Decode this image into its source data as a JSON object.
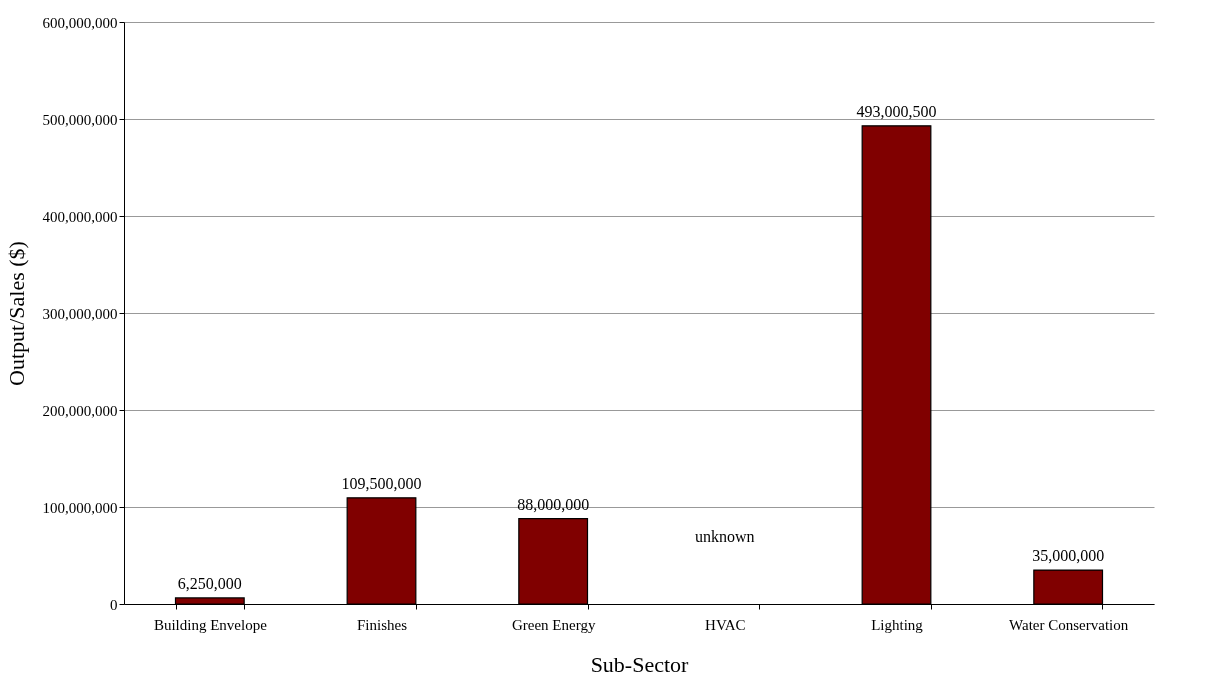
{
  "chart_data": {
    "type": "bar",
    "xlabel": "Sub-Sector",
    "ylabel": "Output/Sales ($)",
    "categories": [
      "Building Envelope",
      "Finishes",
      "Green Energy",
      "HVAC",
      "Lighting",
      "Water Conservation"
    ],
    "series": [
      {
        "color": "#800000",
        "values": [
          6250000,
          109500000,
          88000000,
          null,
          493000500,
          35000000
        ],
        "value_labels": [
          "6,250,000",
          "109,500,000",
          "88,000,000",
          null,
          "493,000,500",
          "35,000,000"
        ]
      }
    ],
    "ylim": [
      0,
      600000000
    ],
    "yticks": [
      0,
      {
        "value": 100000000,
        "label": "100,000,000"
      },
      {
        "value": 200000000,
        "label": "200,000,000"
      },
      {
        "value": 300000000,
        "label": "300,000,000"
      },
      {
        "value": 400000000,
        "label": "400,000,000"
      },
      {
        "value": 500000000,
        "label": "500,000,000"
      },
      {
        "value": 600000000,
        "label": "600,000,000"
      }
    ],
    "grid": "y",
    "annotations": [
      "unknown"
    ]
  }
}
